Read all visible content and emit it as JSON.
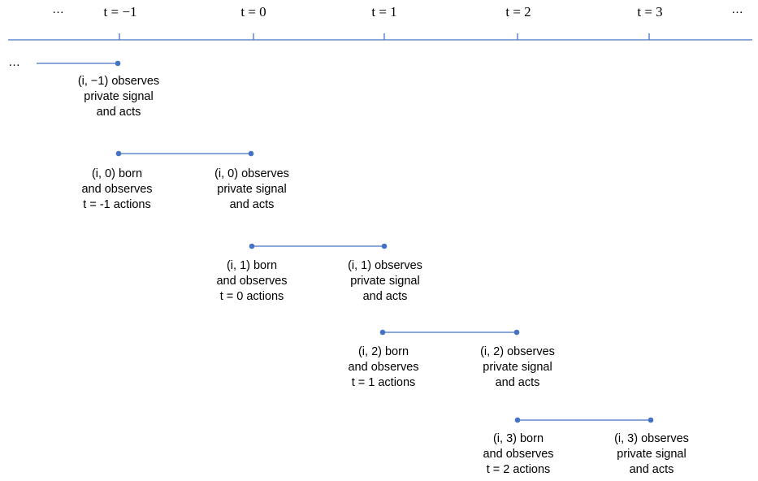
{
  "axis": {
    "ellipsis_left": "…",
    "ellipsis_right": "…",
    "ticks": [
      {
        "label": "t = −1"
      },
      {
        "label": "t = 0"
      },
      {
        "label": "t = 1"
      },
      {
        "label": "t = 2"
      },
      {
        "label": "t = 3"
      }
    ]
  },
  "leading_ellipsis": "…",
  "generations": [
    {
      "start_text": "",
      "end_text": [
        "(i, −1) observes",
        "private signal",
        "and acts"
      ]
    },
    {
      "start_text": [
        "(i, 0) born",
        "and observes",
        "t = -1 actions"
      ],
      "end_text": [
        "(i, 0) observes",
        "private signal",
        "and acts"
      ]
    },
    {
      "start_text": [
        "(i, 1) born",
        "and observes",
        "t = 0 actions"
      ],
      "end_text": [
        "(i, 1) observes",
        "private signal",
        "and acts"
      ]
    },
    {
      "start_text": [
        "(i, 2) born",
        "and observes",
        "t = 1 actions"
      ],
      "end_text": [
        "(i, 2) observes",
        "private signal",
        "and acts"
      ]
    },
    {
      "start_text": [
        "(i, 3)  born",
        "and observes",
        "t = 2 actions"
      ],
      "end_text": [
        "(i, 3) observes",
        "private signal",
        "and acts"
      ]
    }
  ],
  "colors": {
    "line": "#4472c4",
    "text": "#000000"
  }
}
